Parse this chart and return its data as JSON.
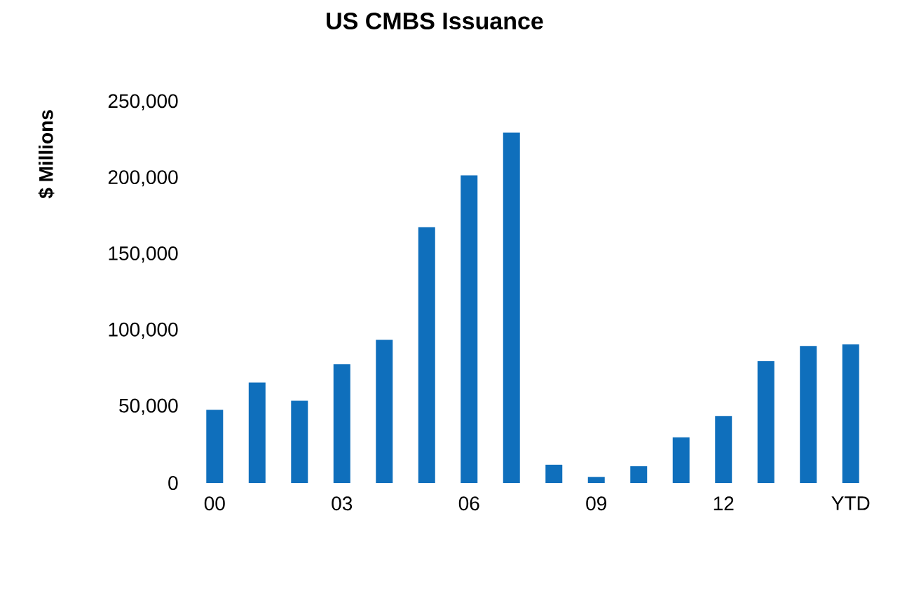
{
  "chart_data": {
    "type": "bar",
    "title": "US CMBS Issuance",
    "ylabel": "$ Millions",
    "categories": [
      "00",
      null,
      null,
      "03",
      null,
      null,
      "06",
      null,
      null,
      "09",
      null,
      null,
      "12",
      null,
      null,
      "YTD"
    ],
    "values": [
      48000,
      66000,
      54000,
      78000,
      94000,
      168000,
      202000,
      230000,
      12000,
      4000,
      11000,
      30000,
      44000,
      80000,
      90000,
      91000
    ],
    "color": "#0f6fbc",
    "ylim": [
      0,
      250000
    ],
    "yticks": [
      {
        "value": 0,
        "label": "0"
      },
      {
        "value": 50000,
        "label": "50,000"
      },
      {
        "value": 100000,
        "label": "100,000"
      },
      {
        "value": 150000,
        "label": "150,000"
      },
      {
        "value": 200000,
        "label": "200,000"
      },
      {
        "value": 250000,
        "label": "250,000"
      }
    ]
  }
}
